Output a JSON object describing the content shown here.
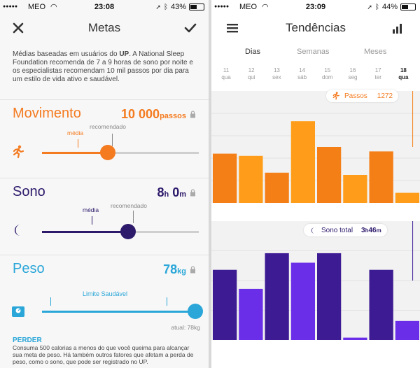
{
  "left": {
    "status": {
      "carrier": "MEO",
      "time": "23:08",
      "battery": "43%",
      "battery_level": 0.43
    },
    "nav": {
      "title": "Metas",
      "close_icon": "close-icon",
      "check_icon": "checkmark-icon"
    },
    "intro": {
      "prefix": "Médias baseadas em usuários do ",
      "brand": "UP",
      "suffix": ". A National Sleep Foundation recomenda de 7 a 9 horas de sono por noite e os especialistas recomendam 10 mil passos por dia para um estilo de vida ativo e saudável."
    },
    "movimento": {
      "name": "Movimento",
      "value": "10 000",
      "unit": "passos",
      "media_label": "média",
      "recomendado_label": "recomendado",
      "color": "#f47b20",
      "level": 0.42
    },
    "sono": {
      "name": "Sono",
      "hours": "8",
      "h_unit": "h",
      "minutes": "0",
      "m_unit": "m",
      "media_label": "média",
      "recomendado_label": "recomendado",
      "color": "#2e1a6b",
      "level": 0.55
    },
    "peso": {
      "name": "Peso",
      "value": "78",
      "unit": "kg",
      "limit_label": "Limite Saudável",
      "atual_label": "atual: 78kg",
      "color": "#2aa6d8",
      "level": 1.0
    },
    "perder": {
      "title": "PERDER",
      "text": "Consuma 500 calorias a menos do que você queima para alcançar sua meta de peso. Há também outros fatores que afetam a perda de peso, como o sono, que pode ser registrado no UP."
    }
  },
  "right": {
    "status": {
      "carrier": "MEO",
      "time": "23:09",
      "battery": "44%",
      "battery_level": 0.44
    },
    "nav": {
      "title": "Tendências",
      "menu_icon": "menu-icon",
      "chart_icon": "bar-chart-icon"
    },
    "tabs": [
      "Dias",
      "Semanas",
      "Meses"
    ],
    "active_tab": 0,
    "days": [
      {
        "num": "11",
        "name": "qua"
      },
      {
        "num": "12",
        "name": "qui"
      },
      {
        "num": "13",
        "name": "sex"
      },
      {
        "num": "14",
        "name": "sáb"
      },
      {
        "num": "15",
        "name": "dom"
      },
      {
        "num": "16",
        "name": "seg"
      },
      {
        "num": "17",
        "name": "ter"
      },
      {
        "num": "18",
        "name": "qua"
      }
    ],
    "steps_bubble": {
      "label": "Passos",
      "value": "1272"
    },
    "sleep_bubble": {
      "label": "Sono total",
      "hours": "3",
      "h_unit": "h",
      "minutes": "46",
      "m_unit": "m"
    }
  },
  "chart_data": [
    {
      "type": "bar",
      "categories": [
        "11 qua",
        "12 qui",
        "13 sex",
        "14 sáb",
        "15 dom",
        "16 seg",
        "17 ter",
        "18 qua"
      ],
      "values": [
        0.44,
        0.42,
        0.27,
        0.73,
        0.5,
        0.25,
        0.46,
        0.09
      ],
      "title": "",
      "colors": [
        "#f57f17",
        "#ff9d1a"
      ]
    },
    {
      "type": "bar",
      "categories": [
        "11 qua",
        "12 qui",
        "13 sex",
        "14 sáb",
        "15 dom",
        "16 seg",
        "17 ter",
        "18 qua"
      ],
      "values": [
        0.59,
        0.43,
        0.73,
        0.65,
        0.73,
        0.02,
        0.59,
        0.16
      ],
      "title": "",
      "colors": [
        "#3d1b93",
        "#6a2ee8"
      ]
    }
  ]
}
